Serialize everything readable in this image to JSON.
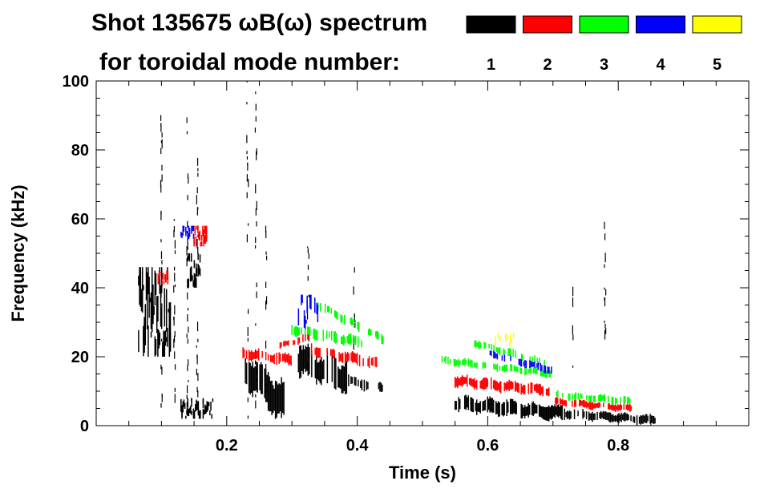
{
  "chart_data": {
    "type": "heatmap",
    "title_line1": "Shot 135675 ωB(ω) spectrum",
    "title_line2": "for toroidal mode number:",
    "xlabel": "Time (s)",
    "ylabel": "Frequency (kHz)",
    "xlim": [
      0.0,
      1.0
    ],
    "ylim": [
      0,
      100
    ],
    "xticks": [
      0.2,
      0.4,
      0.6,
      0.8
    ],
    "xtick_labels": [
      "0.2",
      "0.4",
      "0.6",
      "0.8"
    ],
    "yticks": [
      0,
      20,
      40,
      60,
      80,
      100
    ],
    "ytick_labels": [
      "0",
      "20",
      "40",
      "60",
      "80",
      "100"
    ],
    "legend": [
      {
        "label": "1",
        "color": "#000000"
      },
      {
        "label": "2",
        "color": "#ff0000"
      },
      {
        "label": "3",
        "color": "#00ff00"
      },
      {
        "label": "4",
        "color": "#0000ff"
      },
      {
        "label": "5",
        "color": "#ffff00"
      }
    ],
    "features": [
      {
        "mode": 1,
        "kind": "blob",
        "t": [
          0.065,
          0.115
        ],
        "f": [
          20,
          46
        ],
        "density": 0.55
      },
      {
        "mode": 1,
        "kind": "band",
        "t": [
          0.225,
          0.29
        ],
        "f0": 17,
        "f1": 6,
        "width": 10,
        "density": 0.6
      },
      {
        "mode": 1,
        "kind": "band",
        "t": [
          0.31,
          0.385
        ],
        "f0": 19,
        "f1": 14,
        "width": 8,
        "density": 0.55
      },
      {
        "mode": 1,
        "kind": "band",
        "t": [
          0.385,
          0.44
        ],
        "f0": 13,
        "f1": 11,
        "width": 3,
        "density": 0.4
      },
      {
        "mode": 1,
        "kind": "band",
        "t": [
          0.55,
          0.72
        ],
        "f0": 6.5,
        "f1": 3.5,
        "width": 4,
        "density": 0.55
      },
      {
        "mode": 1,
        "kind": "band",
        "t": [
          0.72,
          0.86
        ],
        "f0": 3.5,
        "f1": 1.5,
        "width": 2.5,
        "density": 0.5
      },
      {
        "mode": 1,
        "kind": "blob",
        "t": [
          0.14,
          0.16
        ],
        "f": [
          40,
          50
        ],
        "density": 0.5
      },
      {
        "mode": 1,
        "kind": "blob",
        "t": [
          0.13,
          0.18
        ],
        "f": [
          2,
          8
        ],
        "density": 0.45
      },
      {
        "mode": 1,
        "kind": "vline",
        "t": 0.1,
        "f": [
          2,
          98
        ]
      },
      {
        "mode": 1,
        "kind": "vline",
        "t": 0.12,
        "f": [
          5,
          60
        ]
      },
      {
        "mode": 1,
        "kind": "vline",
        "t": 0.14,
        "f": [
          3,
          92
        ]
      },
      {
        "mode": 1,
        "kind": "vline",
        "t": 0.155,
        "f": [
          5,
          78
        ]
      },
      {
        "mode": 1,
        "kind": "vline",
        "t": 0.232,
        "f": [
          2,
          100
        ]
      },
      {
        "mode": 1,
        "kind": "vline",
        "t": 0.245,
        "f": [
          5,
          100
        ]
      },
      {
        "mode": 1,
        "kind": "vline",
        "t": 0.26,
        "f": [
          8,
          58
        ]
      },
      {
        "mode": 1,
        "kind": "vline",
        "t": 0.325,
        "f": [
          10,
          52
        ]
      },
      {
        "mode": 1,
        "kind": "vline",
        "t": 0.395,
        "f": [
          14,
          46
        ]
      },
      {
        "mode": 1,
        "kind": "vline",
        "t": 0.78,
        "f": [
          25,
          65
        ]
      },
      {
        "mode": 1,
        "kind": "vline",
        "t": 0.73,
        "f": [
          12,
          42
        ]
      },
      {
        "mode": 2,
        "kind": "band",
        "t": [
          0.225,
          0.3
        ],
        "f0": 21,
        "f1": 19,
        "width": 3,
        "density": 0.45
      },
      {
        "mode": 2,
        "kind": "band",
        "t": [
          0.28,
          0.33
        ],
        "f0": 23,
        "f1": 26,
        "width": 2,
        "density": 0.45
      },
      {
        "mode": 2,
        "kind": "band",
        "t": [
          0.33,
          0.43
        ],
        "f0": 22,
        "f1": 18,
        "width": 3,
        "density": 0.4
      },
      {
        "mode": 2,
        "kind": "band",
        "t": [
          0.55,
          0.7
        ],
        "f0": 13,
        "f1": 10,
        "width": 3,
        "density": 0.5
      },
      {
        "mode": 2,
        "kind": "band",
        "t": [
          0.7,
          0.82
        ],
        "f0": 7,
        "f1": 5,
        "width": 2,
        "density": 0.45
      },
      {
        "mode": 2,
        "kind": "blob",
        "t": [
          0.15,
          0.17
        ],
        "f": [
          52,
          58
        ],
        "density": 0.7
      },
      {
        "mode": 2,
        "kind": "blob",
        "t": [
          0.095,
          0.11
        ],
        "f": [
          41,
          45
        ],
        "density": 0.5
      },
      {
        "mode": 3,
        "kind": "band",
        "t": [
          0.3,
          0.41
        ],
        "f0": 28,
        "f1": 24,
        "width": 3,
        "density": 0.35
      },
      {
        "mode": 3,
        "kind": "band",
        "t": [
          0.34,
          0.44
        ],
        "f0": 35,
        "f1": 25,
        "width": 2.5,
        "density": 0.3
      },
      {
        "mode": 3,
        "kind": "band",
        "t": [
          0.53,
          0.7
        ],
        "f0": 19,
        "f1": 15,
        "width": 2,
        "density": 0.4
      },
      {
        "mode": 3,
        "kind": "band",
        "t": [
          0.58,
          0.69
        ],
        "f0": 24,
        "f1": 18,
        "width": 2,
        "density": 0.3
      },
      {
        "mode": 3,
        "kind": "band",
        "t": [
          0.7,
          0.82
        ],
        "f0": 9,
        "f1": 7,
        "width": 2,
        "density": 0.3
      },
      {
        "mode": 4,
        "kind": "band",
        "t": [
          0.6,
          0.7
        ],
        "f0": 21,
        "f1": 16,
        "width": 2,
        "density": 0.25
      },
      {
        "mode": 4,
        "kind": "blob",
        "t": [
          0.31,
          0.34
        ],
        "f": [
          28,
          38
        ],
        "density": 0.1
      },
      {
        "mode": 4,
        "kind": "blob",
        "t": [
          0.13,
          0.15
        ],
        "f": [
          54,
          58
        ],
        "density": 0.3
      },
      {
        "mode": 5,
        "kind": "blob",
        "t": [
          0.61,
          0.64
        ],
        "f": [
          23,
          27
        ],
        "density": 0.1
      }
    ]
  }
}
